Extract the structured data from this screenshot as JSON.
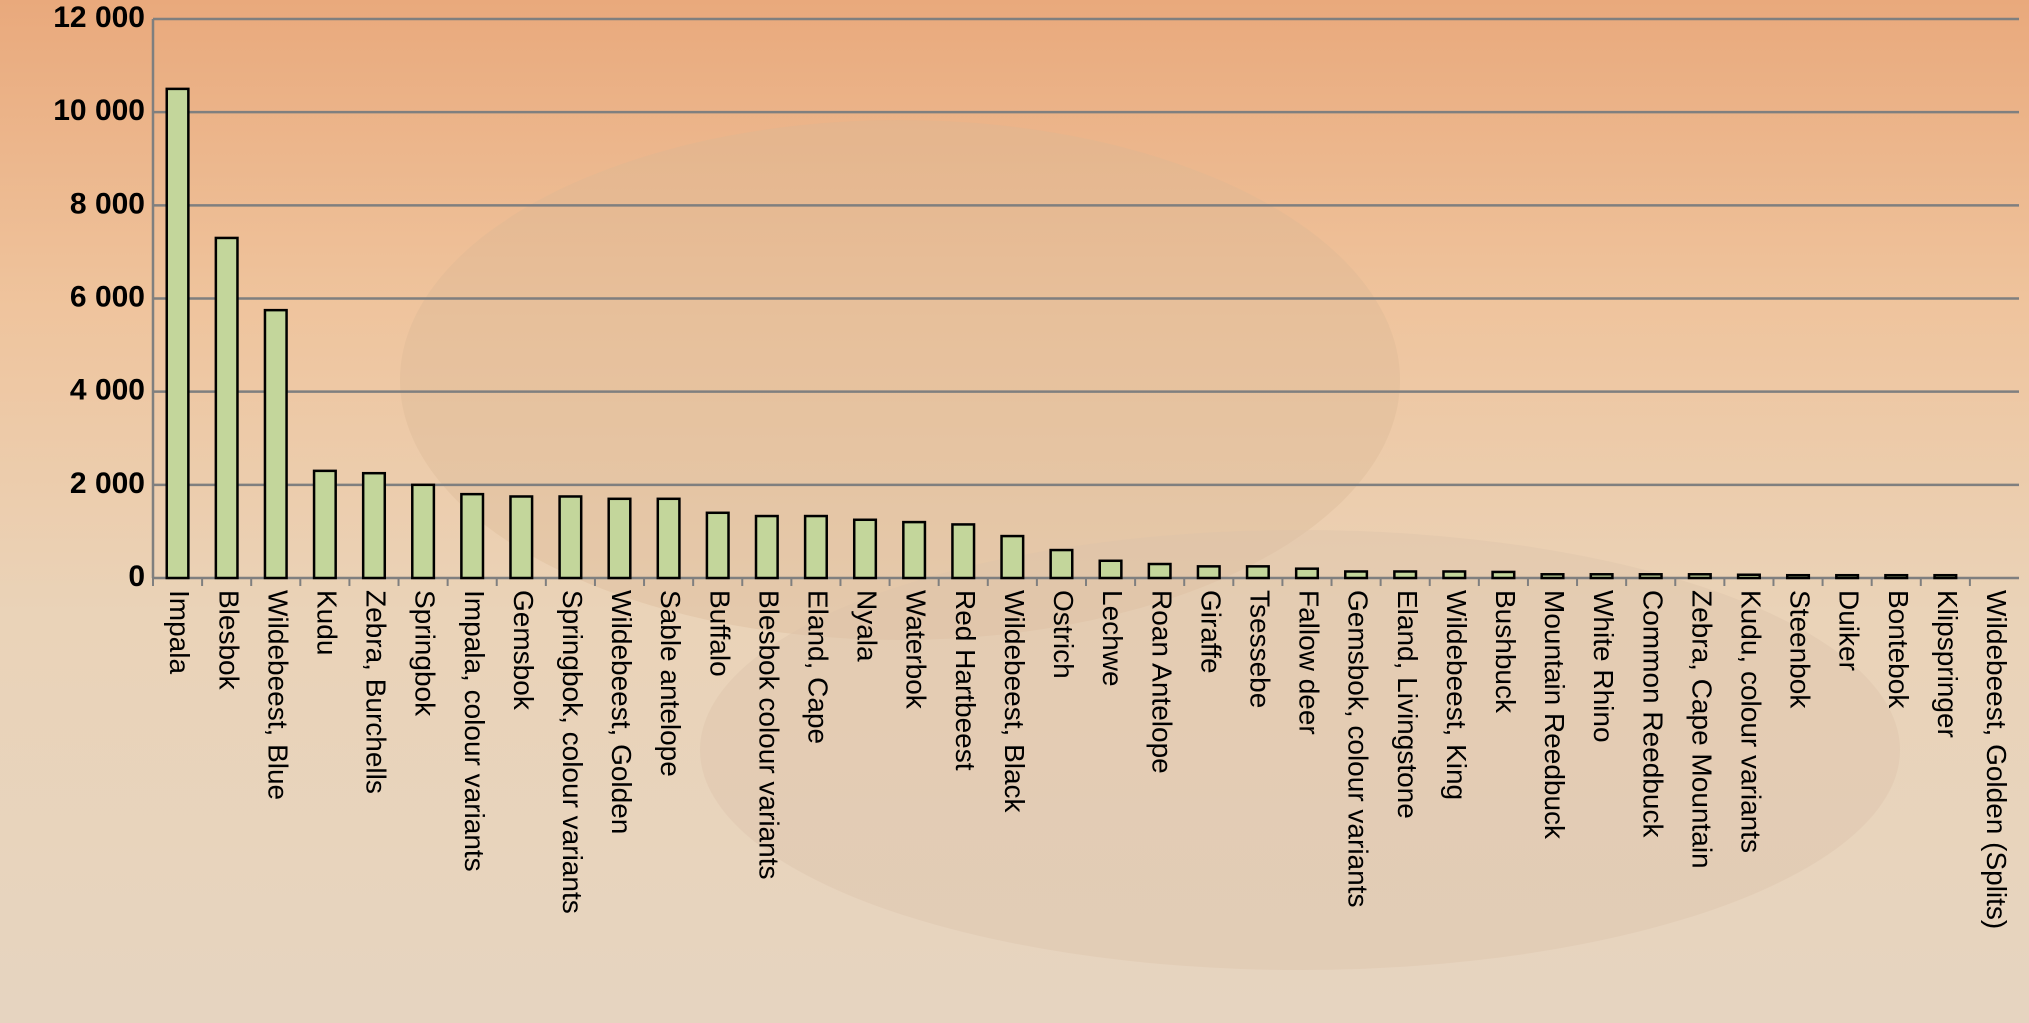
{
  "chart_data": {
    "type": "bar",
    "categories": [
      "Impala",
      "Blesbok",
      "Wildebeest, Blue",
      "Kudu",
      "Zebra, Burchells",
      "Springbok",
      "Impala, colour variants",
      "Gemsbok",
      "Springbok, colour variants",
      "Wildebeest, Golden",
      "Sable antelope",
      "Buffalo",
      "Blesbok colour variants",
      "Eland, Cape",
      "Nyala",
      "Waterbok",
      "Red Hartbeest",
      "Wildebeest, Black",
      "Ostrich",
      "Lechwe",
      "Roan Antelope",
      "Giraffe",
      "Tsessebe",
      "Fallow deer",
      "Gemsbok, colour variants",
      "Eland, Livingstone",
      "Wildebeest, King",
      "Bushbuck",
      "Mountain Reedbuck",
      "White Rhino",
      "Common Reedbuck",
      "Zebra, Cape Mountain",
      "Kudu, colour variants",
      "Steenbok",
      "Duiker",
      "Bontebok",
      "Klipspringer",
      "Wildebeest, Golden (Splits)"
    ],
    "values": [
      10500,
      7300,
      5750,
      2300,
      2250,
      2000,
      1800,
      1750,
      1750,
      1700,
      1700,
      1400,
      1330,
      1330,
      1250,
      1200,
      1150,
      900,
      600,
      370,
      300,
      250,
      250,
      200,
      140,
      140,
      140,
      130,
      80,
      80,
      80,
      80,
      70,
      60,
      60,
      60,
      60,
      0
    ],
    "color": "#c3d69b",
    "ylim": [
      0,
      12000
    ],
    "yticks": [
      0,
      {
        "value": 2000,
        "label": "2 000"
      },
      {
        "value": 4000,
        "label": "4 000"
      },
      {
        "value": 6000,
        "label": "6 000"
      },
      {
        "value": 8000,
        "label": "8 000"
      },
      {
        "value": 10000,
        "label": "10 000"
      },
      {
        "value": 12000,
        "label": "12 000"
      }
    ],
    "grid": true
  }
}
